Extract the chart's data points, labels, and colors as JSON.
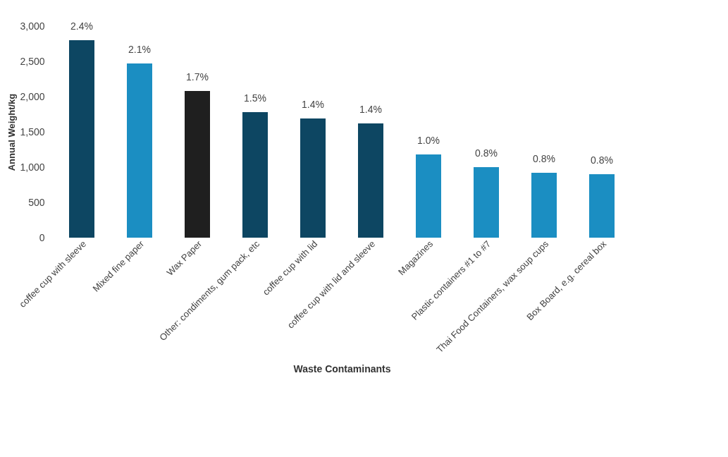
{
  "chart_data": {
    "type": "bar",
    "xlabel": "Waste Contaminants",
    "ylabel": "Annual Weight/kg",
    "categories": [
      "coffee cup with sleeve",
      "Mixed fine paper",
      "Wax Paper",
      "Other: condiments, gum pack, etc",
      "coffee cup with lid",
      "coffee cup with lid and sleeve",
      "Magazines",
      "Plastic containers #1 to #7",
      "Thai Food Containers, wax soup cups",
      "Box Board, e.g. cereal box"
    ],
    "values": [
      2800,
      2470,
      2080,
      1780,
      1690,
      1620,
      1180,
      1000,
      920,
      900
    ],
    "colors": [
      "#0d4662",
      "#1b8ec2",
      "#1f1f1f",
      "#0d4662",
      "#0d4662",
      "#0d4662",
      "#1b8ec2",
      "#1b8ec2",
      "#1b8ec2",
      "#1b8ec2"
    ],
    "annotations": [
      {
        "text": "2.4%",
        "x": "coffee cup with sleeve",
        "y": 2800
      },
      {
        "text": "2.1%",
        "x": "Mixed fine paper",
        "y": 2470
      },
      {
        "text": "1.7%",
        "x": "Wax Paper",
        "y": 2080
      },
      {
        "text": "1.5%",
        "x": "Other: condiments, gum pack, etc",
        "y": 1780
      },
      {
        "text": "1.4%",
        "x": "coffee cup with lid",
        "y": 1690
      },
      {
        "text": "1.4%",
        "x": "coffee cup with lid and sleeve",
        "y": 1620
      },
      {
        "text": "1.0%",
        "x": "Magazines",
        "y": 1180
      },
      {
        "text": "0.8%",
        "x": "Plastic containers #1 to #7",
        "y": 1000
      },
      {
        "text": "0.8%",
        "x": "Thai Food Containers, wax soup cups",
        "y": 920
      },
      {
        "text": "0.8%",
        "x": "Box Board, e.g. cereal box",
        "y": 900
      }
    ],
    "ylim": [
      0,
      3000
    ],
    "yticks": [
      0,
      {
        "value": 500,
        "label": "500"
      },
      {
        "value": 1000,
        "label": "1,000"
      },
      {
        "value": 1500,
        "label": "1,500"
      },
      {
        "value": 2000,
        "label": "2,000"
      },
      {
        "value": 2500,
        "label": "2,500"
      },
      {
        "value": 3000,
        "label": "3,000"
      }
    ],
    "grid": false
  }
}
